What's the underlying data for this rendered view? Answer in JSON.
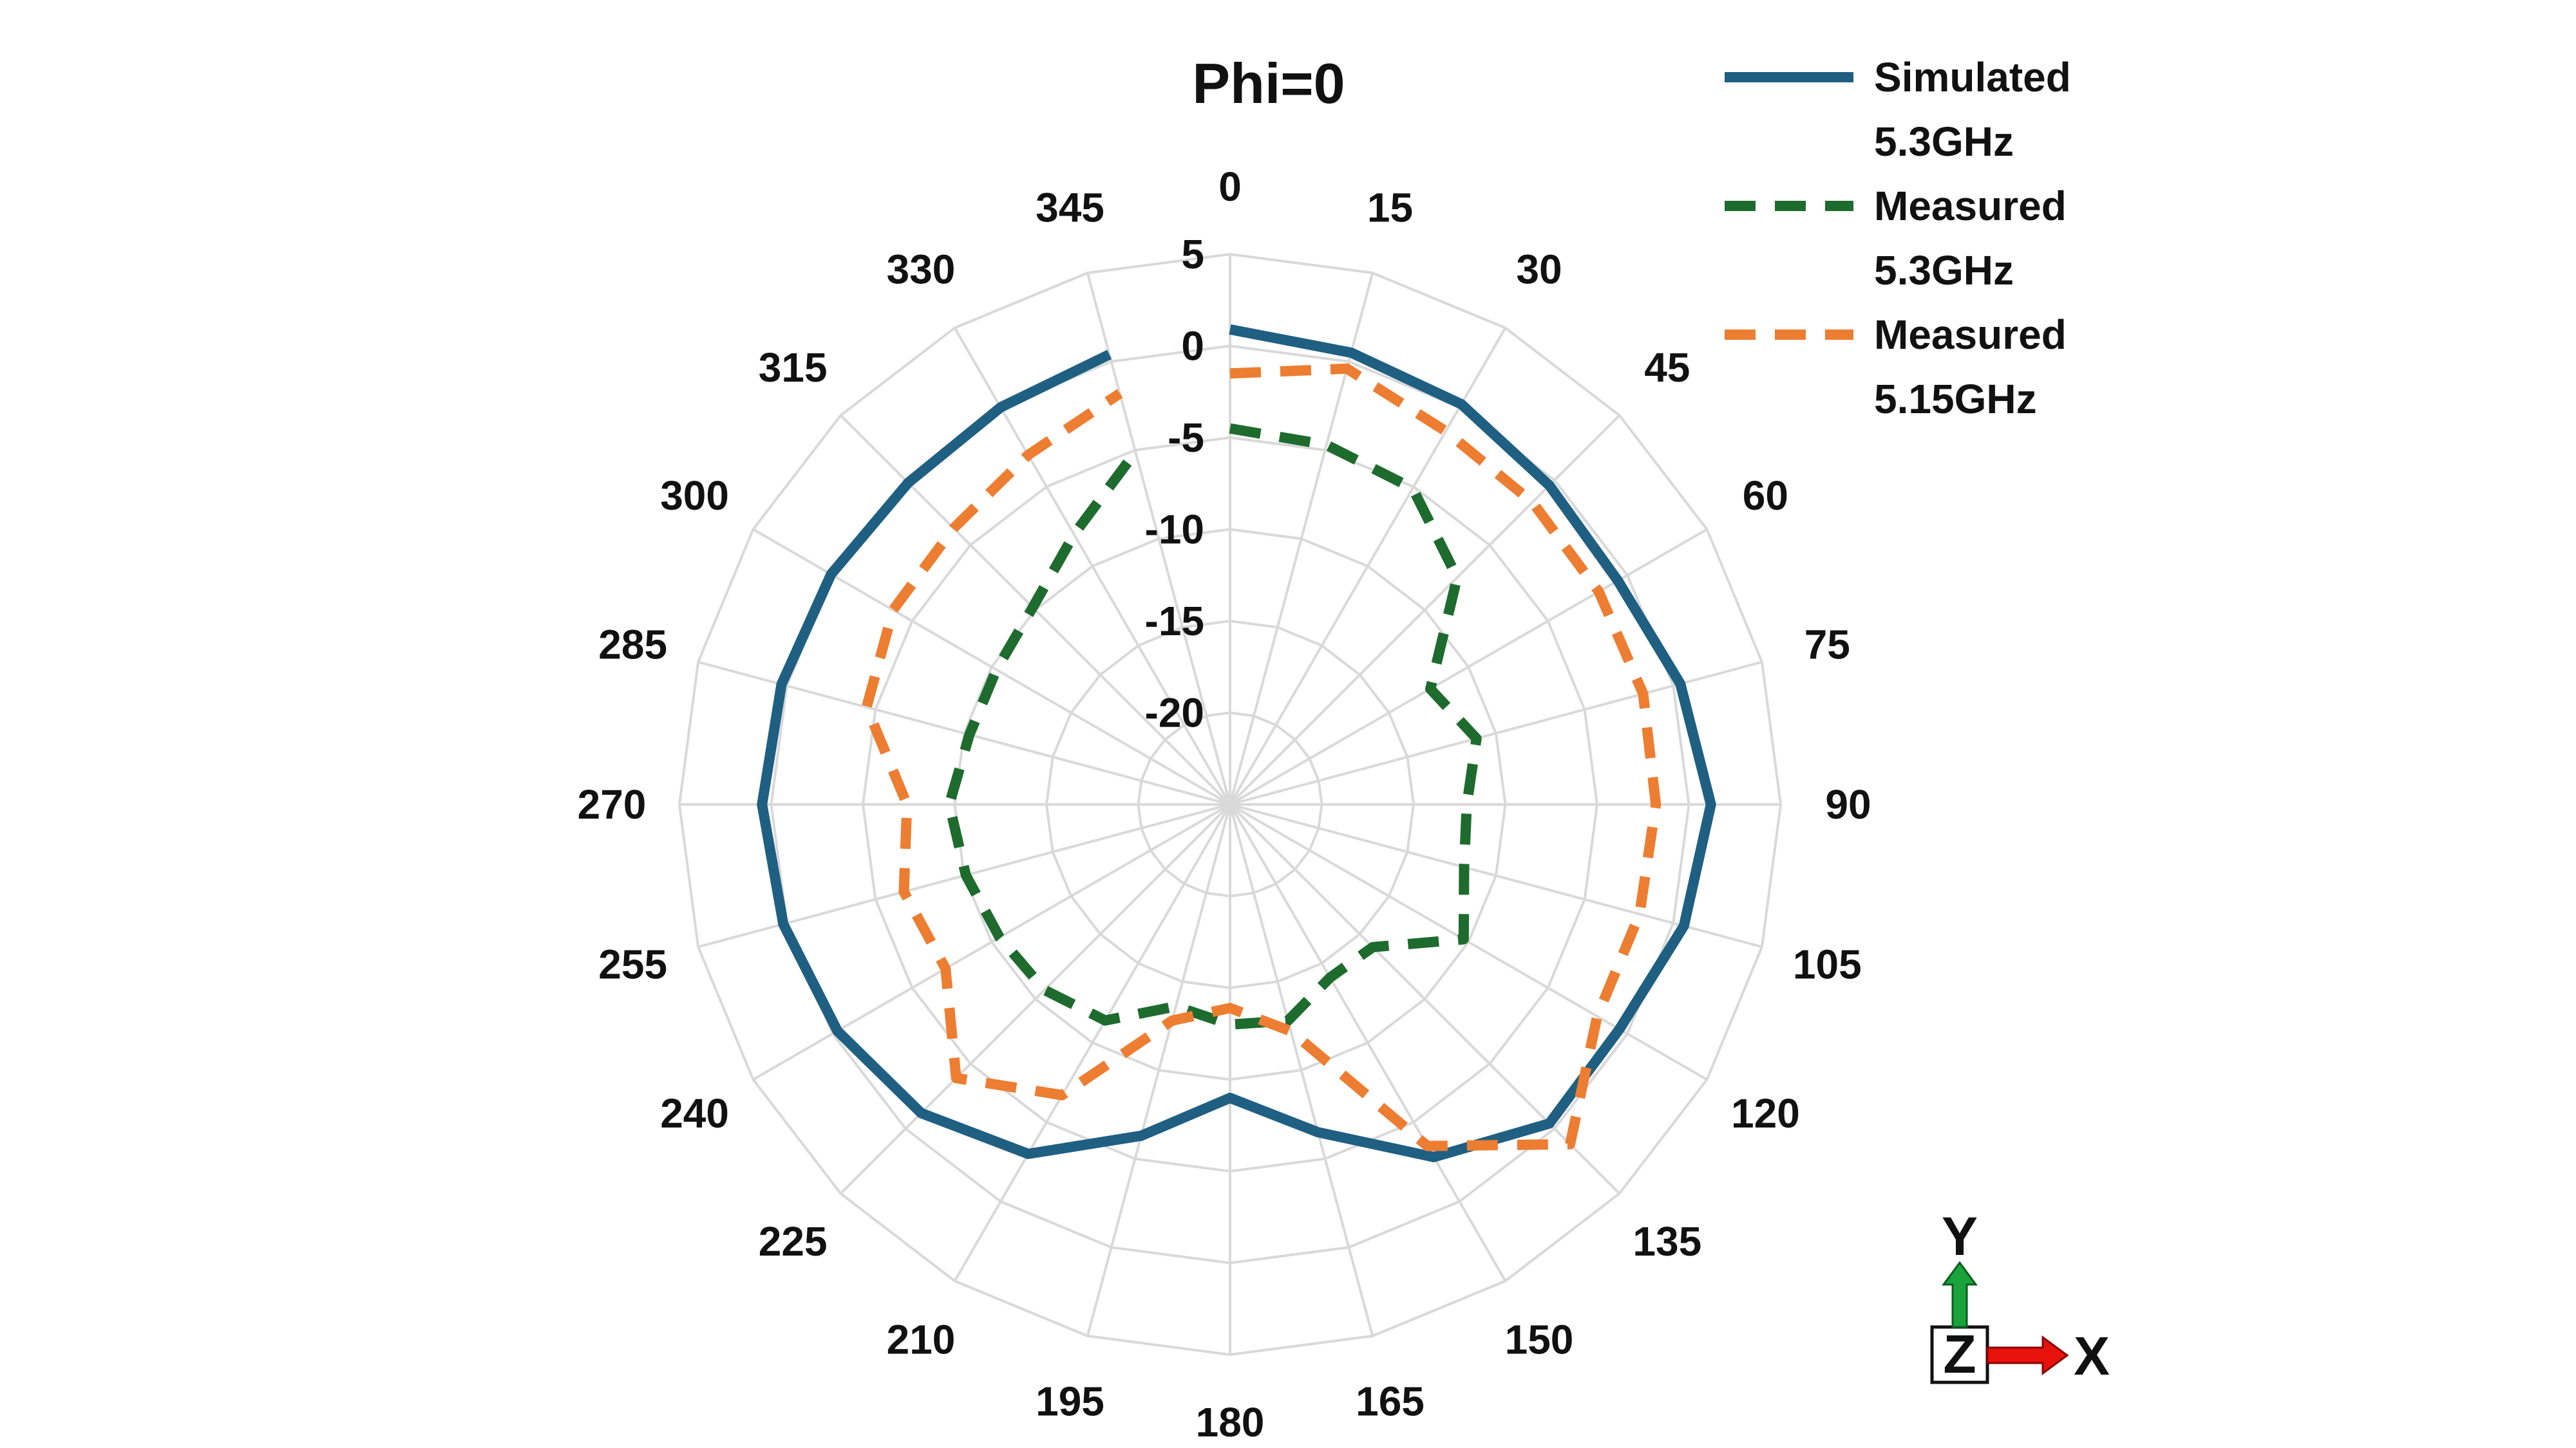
{
  "chart_data": {
    "type": "polar-line",
    "title": "Phi=0",
    "angle_labels": [
      "0",
      "15",
      "30",
      "45",
      "60",
      "75",
      "90",
      "105",
      "120",
      "135",
      "150",
      "165",
      "180",
      "195",
      "210",
      "225",
      "240",
      "255",
      "270",
      "285",
      "300",
      "315",
      "330",
      "345"
    ],
    "angles_deg": [
      0,
      15,
      30,
      45,
      60,
      75,
      90,
      105,
      120,
      135,
      150,
      165,
      180,
      195,
      210,
      225,
      240,
      255,
      270,
      285,
      300,
      315,
      330,
      345
    ],
    "radial_ticks": [
      5,
      0,
      -5,
      -10,
      -15,
      -20
    ],
    "radial_tick_labels": [
      "5",
      "0",
      "-5",
      "-10",
      "-15",
      "-20"
    ],
    "rlim": [
      -25,
      5
    ],
    "grid": true,
    "legend_position": "top-right",
    "series": [
      {
        "name": "Simulated 5.3GHz",
        "name_lines": [
          "Simulated",
          "5.3GHz"
        ],
        "color": "#1f5f82",
        "line_style": "solid",
        "values": [
          0.9,
          0.5,
          0.2,
          -0.4,
          -0.6,
          0.4,
          1.2,
          0.6,
          -0.5,
          -0.4,
          -2.8,
          -6.5,
          -9.0,
          -6.3,
          -3.0,
          -1.2,
          -0.3,
          0.2,
          0.5,
          0.3,
          0.1,
          -0.2,
          0.0,
          0.4
        ]
      },
      {
        "name": "Measured 5.3GHz",
        "name_lines": [
          "Measured",
          "5.3GHz"
        ],
        "color": "#1e6b2e",
        "line_style": "dashed",
        "values": [
          -4.5,
          -4.7,
          -5.1,
          -7.5,
          -12.4,
          -11.1,
          -12.1,
          -11.8,
          -10.3,
          -14.0,
          -14.1,
          -12.8,
          -13.0,
          -13.6,
          -11.4,
          -10.7,
          -10.5,
          -10.1,
          -9.7,
          -10.3,
          -10.3,
          -9.8,
          -8.0,
          -5.1
        ]
      },
      {
        "name": "Measured 5.15GHz",
        "name_lines": [
          "Measured",
          "5.15GHz"
        ],
        "color": "#ed7d31",
        "line_style": "dashed",
        "values": [
          -1.5,
          -0.4,
          -1.5,
          -1.7,
          -1.8,
          -1.7,
          -1.8,
          -1.9,
          -1.9,
          1.2,
          -3.5,
          -12.2,
          -13.9,
          -12.8,
          -6.7,
          -3.9,
          -7.1,
          -6.6,
          -7.4,
          -4.5,
          -3.8,
          -3.7,
          -3.0,
          -1.8
        ]
      }
    ]
  },
  "axis_indicator": {
    "x_label": "X",
    "y_label": "Y",
    "z_label": "Z",
    "x_arrow_color": "#e8120c",
    "y_arrow_color": "#1aa33b"
  }
}
